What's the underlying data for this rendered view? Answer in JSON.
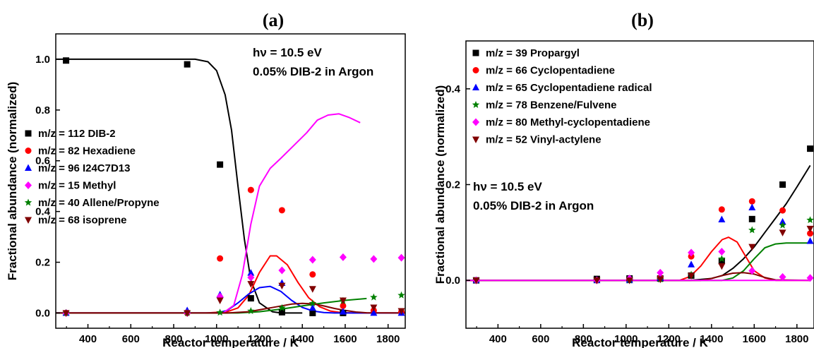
{
  "chart_data": [
    {
      "type": "scatter",
      "panel_label": "(a)",
      "xlabel": "Reactor temperature / K",
      "ylabel": "Fractional abundance (normalized)",
      "xlim": [
        250,
        1880
      ],
      "ylim": [
        -0.06,
        1.1
      ],
      "xticks": [
        400,
        600,
        800,
        1000,
        1200,
        1400,
        1600,
        1800
      ],
      "xtick_labels": [
        "400",
        "600",
        "800",
        "1000",
        "1200",
        "1400",
        "1600",
        "1800"
      ],
      "yticks": [
        0.0,
        0.2,
        0.4,
        0.6,
        0.8,
        1.0
      ],
      "ytick_labels": [
        "0.0",
        "0.2",
        "0.4",
        "0.6",
        "0.8",
        "1.0"
      ],
      "grid": false,
      "legend_position": "left",
      "annotations": [
        "hν = 10.5 eV",
        "0.05% DIB-2 in Argon"
      ],
      "series": [
        {
          "name": "m/z = 112 DIB-2",
          "marker": "square",
          "color": "#000000",
          "x": [
            298,
            863,
            1016,
            1160,
            1305,
            1448,
            1590
          ],
          "y": [
            0.995,
            0.98,
            0.585,
            0.058,
            0.003,
            0.0,
            0.0
          ]
        },
        {
          "name": "m/z = 82 Hexadiene",
          "marker": "circle",
          "color": "#ff0000",
          "x": [
            298,
            863,
            1016,
            1160,
            1305,
            1448,
            1590,
            1733,
            1862
          ],
          "y": [
            0.0,
            0.0,
            0.215,
            0.485,
            0.405,
            0.152,
            0.028,
            0.01,
            0.005
          ]
        },
        {
          "name": "m/z = 96 I24C7D13",
          "marker": "triangle",
          "color": "#0000ff",
          "x": [
            298,
            863,
            1016,
            1160,
            1305,
            1448,
            1590,
            1733,
            1862
          ],
          "y": [
            0.0,
            0.01,
            0.072,
            0.158,
            0.118,
            0.02,
            0.005,
            0.0,
            0.0
          ]
        },
        {
          "name": "m/z = 15 Methyl",
          "marker": "diamond",
          "color": "#ff00ff",
          "x": [
            298,
            863,
            1016,
            1160,
            1305,
            1448,
            1590,
            1733,
            1862
          ],
          "y": [
            0.0,
            0.0,
            0.065,
            0.14,
            0.168,
            0.21,
            0.22,
            0.213,
            0.218
          ]
        },
        {
          "name": "m/z = 40 Allene/Propyne",
          "marker": "star",
          "color": "#008000",
          "x": [
            298,
            863,
            1016,
            1160,
            1305,
            1448,
            1590,
            1733,
            1862
          ],
          "y": [
            0.0,
            0.0,
            0.002,
            0.008,
            0.02,
            0.038,
            0.048,
            0.062,
            0.07
          ]
        },
        {
          "name": "m/z = 68 isoprene",
          "marker": "triangle-down",
          "color": "#800000",
          "x": [
            298,
            863,
            1016,
            1160,
            1305,
            1448,
            1590,
            1733,
            1862
          ],
          "y": [
            0.0,
            0.0,
            0.05,
            0.115,
            0.108,
            0.095,
            0.05,
            0.022,
            0.008
          ]
        }
      ],
      "fit_curves": [
        {
          "color": "#000000",
          "x": [
            250,
            900,
            960,
            1000,
            1040,
            1070,
            1100,
            1130,
            1160,
            1200,
            1260,
            1300,
            1350,
            1400
          ],
          "y": [
            1.0,
            1.0,
            0.99,
            0.955,
            0.86,
            0.72,
            0.5,
            0.29,
            0.13,
            0.04,
            0.005,
            0.0,
            0.0,
            0.0
          ]
        },
        {
          "color": "#ff0000",
          "x": [
            250,
            950,
            1050,
            1100,
            1150,
            1200,
            1250,
            1280,
            1330,
            1380,
            1430,
            1480,
            1530,
            1580,
            1640,
            1700,
            1880
          ],
          "y": [
            0.0,
            0.0,
            0.005,
            0.02,
            0.07,
            0.16,
            0.225,
            0.225,
            0.19,
            0.12,
            0.06,
            0.025,
            0.008,
            0.002,
            0.0,
            0.0,
            0.0
          ]
        },
        {
          "color": "#0000ff",
          "x": [
            250,
            1000,
            1050,
            1100,
            1150,
            1200,
            1250,
            1300,
            1350,
            1400,
            1450,
            1500,
            1550,
            1600,
            1880
          ],
          "y": [
            0.0,
            0.0,
            0.01,
            0.04,
            0.075,
            0.1,
            0.105,
            0.085,
            0.05,
            0.022,
            0.008,
            0.002,
            0.0,
            0.0,
            0.0
          ]
        },
        {
          "color": "#ff00ff",
          "x": [
            250,
            1030,
            1080,
            1120,
            1160,
            1200,
            1250,
            1300,
            1360,
            1420,
            1470,
            1520,
            1570,
            1620,
            1670
          ],
          "y": [
            0.0,
            0.0,
            0.03,
            0.15,
            0.35,
            0.5,
            0.57,
            0.61,
            0.66,
            0.71,
            0.76,
            0.78,
            0.785,
            0.77,
            0.75
          ]
        },
        {
          "color": "#008000",
          "x": [
            250,
            1100,
            1200,
            1300,
            1400,
            1500,
            1600,
            1700
          ],
          "y": [
            0.0,
            0.0,
            0.005,
            0.015,
            0.028,
            0.04,
            0.05,
            0.057
          ]
        },
        {
          "color": "#800000",
          "x": [
            250,
            1050,
            1150,
            1250,
            1350,
            1400,
            1450,
            1500,
            1550,
            1600,
            1650,
            1700,
            1880
          ],
          "y": [
            0.0,
            0.0,
            0.005,
            0.02,
            0.035,
            0.038,
            0.036,
            0.028,
            0.018,
            0.01,
            0.004,
            0.001,
            0.0
          ]
        }
      ]
    },
    {
      "type": "scatter",
      "panel_label": "(b)",
      "xlabel": "Reactor temperature / K",
      "ylabel": "Fractional abundance (normalized)",
      "xlim": [
        250,
        1880
      ],
      "ylim": [
        -0.1,
        0.5
      ],
      "xticks": [
        400,
        600,
        800,
        1000,
        1200,
        1400,
        1600,
        1800
      ],
      "xtick_labels": [
        "400",
        "600",
        "800",
        "1000",
        "1200",
        "1400",
        "1600",
        "1800"
      ],
      "yticks": [
        0.0,
        0.2,
        0.4
      ],
      "ytick_labels": [
        "0.0",
        "0.2",
        "0.4"
      ],
      "grid": false,
      "legend_position": "top-left",
      "annotations": [
        "hν = 10.5 eV",
        "0.05% DIB-2 in Argon"
      ],
      "series": [
        {
          "name": "m/z = 39 Propargyl",
          "marker": "square",
          "color": "#000000",
          "x": [
            298,
            863,
            1016,
            1160,
            1305,
            1448,
            1590,
            1733,
            1862
          ],
          "y": [
            0.0,
            0.003,
            0.004,
            0.004,
            0.01,
            0.04,
            0.128,
            0.2,
            0.275
          ]
        },
        {
          "name": "m/z = 66 Cyclopentadiene",
          "marker": "circle",
          "color": "#ff0000",
          "x": [
            298,
            863,
            1016,
            1160,
            1305,
            1448,
            1590,
            1733,
            1862
          ],
          "y": [
            0.0,
            0.0,
            0.002,
            0.005,
            0.05,
            0.148,
            0.165,
            0.146,
            0.098
          ]
        },
        {
          "name": "m/z = 65 Cyclopentadiene radical",
          "marker": "triangle",
          "color": "#0000ff",
          "x": [
            298,
            863,
            1016,
            1160,
            1305,
            1448,
            1590,
            1733,
            1862
          ],
          "y": [
            0.0,
            0.0,
            0.0,
            0.005,
            0.033,
            0.127,
            0.152,
            0.122,
            0.082
          ]
        },
        {
          "name": "m/z = 78 Benzene/Fulvene",
          "marker": "star",
          "color": "#008000",
          "x": [
            298,
            863,
            1016,
            1160,
            1305,
            1448,
            1590,
            1733,
            1862
          ],
          "y": [
            0.0,
            0.0,
            0.0,
            0.002,
            0.012,
            0.045,
            0.105,
            0.115,
            0.126
          ]
        },
        {
          "name": "m/z = 80 Methyl-cyclopentadiene",
          "marker": "diamond",
          "color": "#ff00ff",
          "x": [
            298,
            863,
            1016,
            1160,
            1305,
            1448,
            1590,
            1733,
            1862
          ],
          "y": [
            0.0,
            0.0,
            0.004,
            0.016,
            0.058,
            0.06,
            0.02,
            0.007,
            0.005
          ]
        },
        {
          "name": "m/z = 52 Vinyl-actylene",
          "marker": "triangle-down",
          "color": "#800000",
          "x": [
            298,
            863,
            1016,
            1160,
            1305,
            1448,
            1590,
            1733,
            1862
          ],
          "y": [
            0.0,
            0.0,
            0.0,
            0.002,
            0.01,
            0.03,
            0.07,
            0.1,
            0.108
          ]
        }
      ],
      "fit_curves": [
        {
          "color": "#000000",
          "x": [
            250,
            1300,
            1400,
            1450,
            1500,
            1550,
            1600,
            1650,
            1700,
            1750,
            1800,
            1862
          ],
          "y": [
            0.0,
            0.0,
            0.004,
            0.01,
            0.025,
            0.045,
            0.07,
            0.1,
            0.13,
            0.16,
            0.195,
            0.24
          ]
        },
        {
          "color": "#ff0000",
          "x": [
            250,
            1250,
            1300,
            1350,
            1400,
            1450,
            1480,
            1520,
            1560,
            1600,
            1650,
            1700,
            1862
          ],
          "y": [
            0.0,
            0.0,
            0.008,
            0.03,
            0.06,
            0.085,
            0.09,
            0.08,
            0.05,
            0.02,
            0.005,
            0.0,
            0.0
          ]
        },
        {
          "color": "#008000",
          "x": [
            250,
            1450,
            1500,
            1550,
            1600,
            1650,
            1700,
            1750,
            1800,
            1862
          ],
          "y": [
            0.0,
            0.0,
            0.005,
            0.02,
            0.045,
            0.068,
            0.076,
            0.078,
            0.078,
            0.078
          ]
        },
        {
          "color": "#800000",
          "x": [
            250,
            1350,
            1400,
            1450,
            1500,
            1550,
            1600,
            1650,
            1700,
            1862
          ],
          "y": [
            0.0,
            0.0,
            0.004,
            0.01,
            0.015,
            0.016,
            0.013,
            0.006,
            0.001,
            0.0
          ]
        },
        {
          "color": "#ff00ff",
          "x": [
            250,
            1862
          ],
          "y": [
            0.0,
            0.0
          ]
        }
      ]
    }
  ]
}
